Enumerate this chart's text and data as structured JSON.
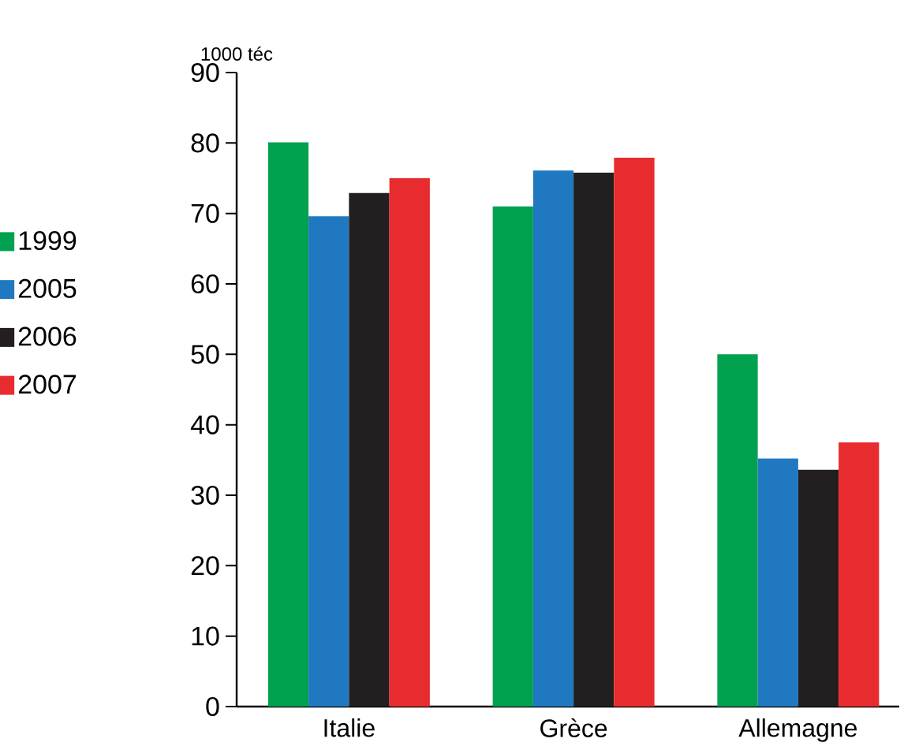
{
  "chart_data": {
    "type": "bar",
    "ylabel": "1000 téc",
    "categories": [
      "Italie",
      "Grèce",
      "Allemagne"
    ],
    "series": [
      {
        "name": "1999",
        "color": "#00a14f",
        "values": [
          80.1,
          71.0,
          50.0
        ]
      },
      {
        "name": "2005",
        "color": "#2079c0",
        "values": [
          69.6,
          76.1,
          35.2
        ]
      },
      {
        "name": "2006",
        "color": "#231f20",
        "values": [
          72.9,
          75.8,
          33.6
        ]
      },
      {
        "name": "2007",
        "color": "#e82b2e",
        "values": [
          75.0,
          77.9,
          37.5
        ]
      }
    ],
    "ylim": [
      0,
      90
    ],
    "yticks": [
      0,
      10,
      20,
      30,
      40,
      50,
      60,
      70,
      80,
      90
    ],
    "grid": false,
    "legend": "left"
  }
}
